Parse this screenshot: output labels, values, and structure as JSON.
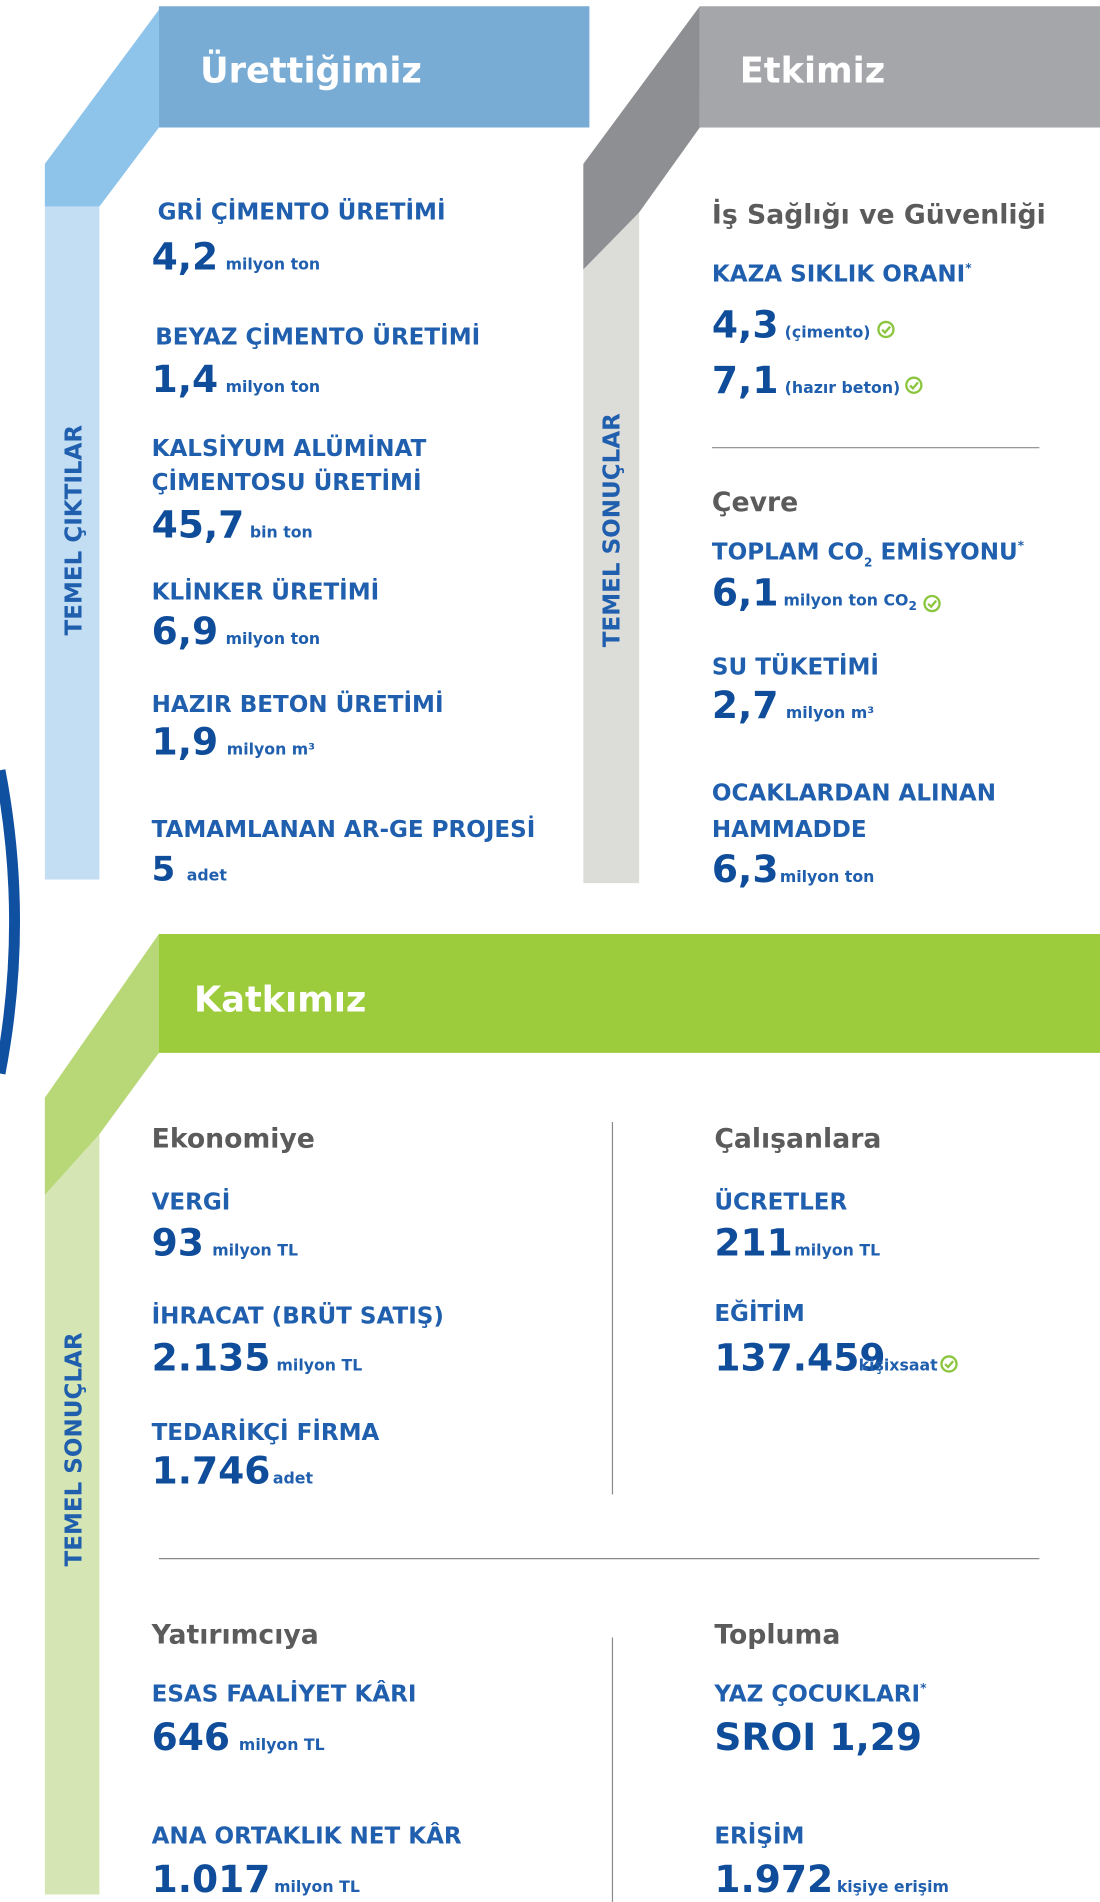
{
  "outputs": {
    "title": "Ürettiğimiz",
    "side_label": "TEMEL ÇIKTILAR",
    "items": [
      {
        "label": [
          "GRİ ÇİMENTO ÜRETİMİ"
        ],
        "value": "4,2",
        "unit": "milyon ton"
      },
      {
        "label": [
          "BEYAZ ÇİMENTO ÜRETİMİ"
        ],
        "value": "1,4",
        "unit": "milyon ton"
      },
      {
        "label": [
          "KALSİYUM ALÜMİNAT",
          "ÇİMENTOSU ÜRETİMİ"
        ],
        "value": "45,7",
        "unit": "bin ton"
      },
      {
        "label": [
          "KLİNKER ÜRETİMİ"
        ],
        "value": "6,9",
        "unit": "milyon ton"
      },
      {
        "label": [
          "HAZIR BETON ÜRETİMİ"
        ],
        "value": "1,9",
        "unit": "milyon m³"
      },
      {
        "label": [
          "TAMAMLANAN AR-GE PROJESİ"
        ],
        "value": "5",
        "unit": "adet"
      }
    ]
  },
  "impact": {
    "title": "Etkimiz",
    "side_label": "TEMEL SONUÇLAR",
    "sections": [
      {
        "heading": "İş Sağlığı ve Güvenliği",
        "items": [
          {
            "label": "KAZA SIKLIK ORANI",
            "note_mark": "*",
            "values": [
              {
                "value": "4,3",
                "unit": "(çimento)"
              },
              {
                "value": "7,1",
                "unit": "(hazır beton)"
              }
            ]
          }
        ]
      },
      {
        "heading": "Çevre",
        "items": [
          {
            "label": [
              "TOPLAM CO",
              "2",
              " EMİSYONU"
            ],
            "note_mark": "*",
            "value": "6,1",
            "unit": [
              "milyon ton CO",
              "2"
            ]
          },
          {
            "label": [
              "SU TÜKETİMİ"
            ],
            "value": "2,7",
            "unit": "milyon m³"
          },
          {
            "label": [
              "OCAKLARDAN ALINAN",
              "HAMMADDE"
            ],
            "value": "6,3",
            "unit": "milyon ton"
          }
        ]
      }
    ]
  },
  "contribution": {
    "title": "Katkımız",
    "side_label": "TEMEL SONUÇLAR",
    "sections": [
      {
        "heading": "Ekonomiye",
        "items": [
          {
            "label": "VERGİ",
            "value": "93",
            "unit": "milyon TL"
          },
          {
            "label": "İHRACAT (BRÜT SATIŞ)",
            "value": "2.135",
            "unit": "milyon TL"
          },
          {
            "label": "TEDARİKÇİ FİRMA",
            "value": "1.746",
            "unit": "adet"
          }
        ]
      },
      {
        "heading": "Çalışanlara",
        "items": [
          {
            "label": "ÜCRETLER",
            "value": "211",
            "unit": "milyon TL"
          },
          {
            "label": "EĞİTİM",
            "value": "137.459",
            "unit": "kişixsaat"
          }
        ]
      },
      {
        "heading": "Yatırımcıya",
        "items": [
          {
            "label": "ESAS FAALİYET KÂRI",
            "value": "646",
            "unit": "milyon TL"
          },
          {
            "label": "ANA ORTAKLIK NET KÂR",
            "value": "1.017",
            "unit": "milyon TL"
          }
        ]
      },
      {
        "heading": "Topluma",
        "items": [
          {
            "label": "YAZ ÇOCUKLARI",
            "note_mark": "*",
            "value": "SROI 1,29"
          },
          {
            "label": "ERİŞİM",
            "value": "1.972",
            "unit": "kişiye erişim"
          }
        ]
      }
    ]
  }
}
